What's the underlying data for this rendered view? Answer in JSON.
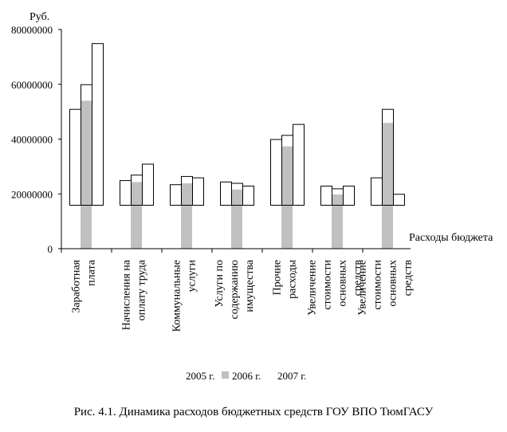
{
  "chart_data": {
    "type": "bar",
    "ylabel": "Руб.",
    "xlabel": "Расходы бюджета",
    "ylim": [
      0,
      80000000
    ],
    "yticks": [
      0,
      20000000,
      40000000,
      60000000,
      80000000
    ],
    "ytick_labels": [
      "0",
      "20000000",
      "40000000",
      "60000000",
      "80000000"
    ],
    "category_lines": [
      [
        "Заработная",
        "плата"
      ],
      [
        "Начисления на",
        "оплату труда"
      ],
      [
        "Коммунальные",
        "услуги"
      ],
      [
        "Услуги по",
        "содержанию",
        "имущества"
      ],
      [
        "Прочие",
        "расходы"
      ],
      [
        "Увеличение",
        "стоимости",
        "основных",
        "средств"
      ],
      [
        "Увеличение",
        "стоимости",
        "основных",
        "средств"
      ]
    ],
    "series": [
      {
        "name": "2005 г.",
        "values": [
          51000000,
          25000000,
          23500000,
          24500000,
          40000000,
          23000000,
          26000000
        ]
      },
      {
        "name": "2006 г.",
        "values": [
          60000000,
          27000000,
          26500000,
          24000000,
          41500000,
          22000000,
          51000000
        ]
      },
      {
        "name": "2007 г.",
        "values": [
          75000000,
          31000000,
          26000000,
          23000000,
          45500000,
          23000000,
          20000000
        ]
      }
    ],
    "legend_position": "bottom",
    "title": "Рис. 4.1. Динамика расходов бюджетных средств ГОУ ВПО ТюмГАСУ"
  }
}
